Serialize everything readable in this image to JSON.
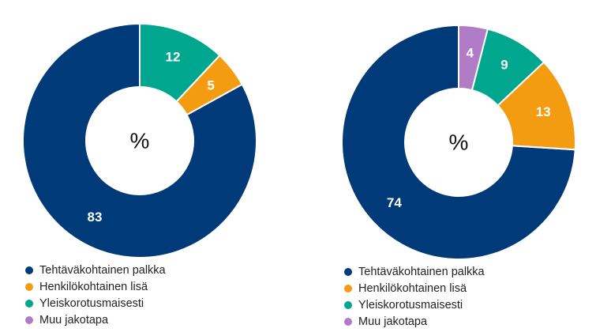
{
  "chart_data": [
    {
      "type": "pie",
      "title": "",
      "center_label": "%",
      "categories": [
        "Tehtäväkohtainen palkka",
        "Henkilökohtainen lisä",
        "Yleiskorotusmaisesti",
        "Muu jakotapa"
      ],
      "values": [
        83,
        5,
        12,
        0
      ],
      "labels": [
        "83",
        "5",
        "12",
        ""
      ],
      "colors": [
        "#003a78",
        "#f39c12",
        "#00a78e",
        "#b07cc6"
      ],
      "legend_position": "bottom-left"
    },
    {
      "type": "pie",
      "title": "",
      "center_label": "%",
      "categories": [
        "Tehtäväkohtainen palkka",
        "Henkilökohtainen lisä",
        "Yleiskorotusmaisesti",
        "Muu jakotapa"
      ],
      "values": [
        74,
        13,
        9,
        4
      ],
      "labels": [
        "74",
        "13",
        "9",
        "4"
      ],
      "colors": [
        "#003a78",
        "#f39c12",
        "#00a78e",
        "#b07cc6"
      ],
      "legend_position": "bottom-left"
    }
  ]
}
